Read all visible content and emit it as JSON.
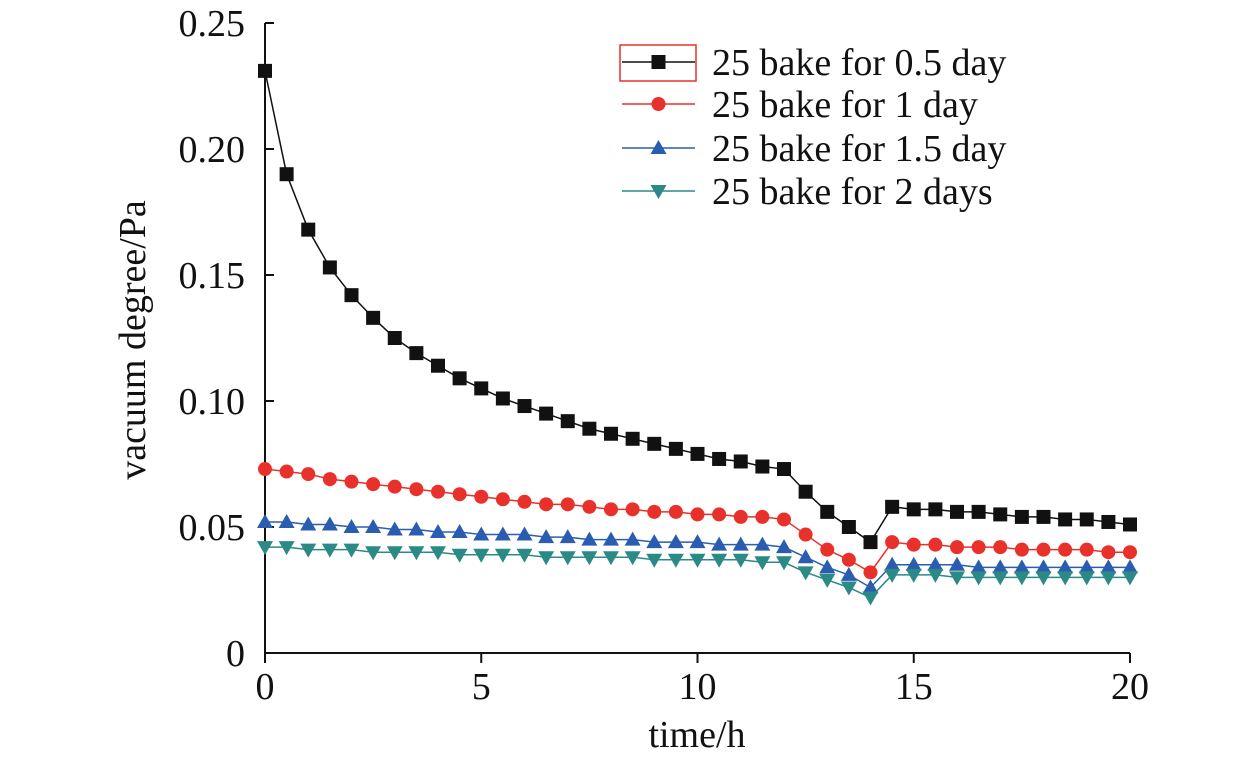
{
  "chart_data": {
    "type": "line",
    "title": "",
    "xlabel": "time/h",
    "ylabel": "vacuum degree/Pa",
    "xlim": [
      0,
      20
    ],
    "ylim": [
      0,
      0.25
    ],
    "xticks": [
      0,
      5,
      10,
      15,
      20
    ],
    "xtick_labels": [
      "0",
      "5",
      "10",
      "15",
      "20"
    ],
    "yticks": [
      0,
      0.05,
      0.1,
      0.15,
      0.2,
      0.25
    ],
    "ytick_labels": [
      "0",
      "0.05",
      "0.10",
      "0.15",
      "0.20",
      "0.25"
    ],
    "grid": false,
    "legend_position": "top-right",
    "x": [
      0,
      0.5,
      1,
      1.5,
      2,
      2.5,
      3,
      3.5,
      4,
      4.5,
      5,
      5.5,
      6,
      6.5,
      7,
      7.5,
      8,
      8.5,
      9,
      9.5,
      10,
      10.5,
      11,
      11.5,
      12,
      12.5,
      13,
      13.5,
      14,
      14.5,
      15,
      15.5,
      16,
      16.5,
      17,
      17.5,
      18,
      18.5,
      19,
      19.5,
      20
    ],
    "series": [
      {
        "name": "25 bake for 0.5 day",
        "color": "#111111",
        "marker": "square",
        "values": [
          0.231,
          0.19,
          0.168,
          0.153,
          0.142,
          0.133,
          0.125,
          0.119,
          0.114,
          0.109,
          0.105,
          0.101,
          0.098,
          0.095,
          0.092,
          0.089,
          0.087,
          0.085,
          0.083,
          0.081,
          0.079,
          0.077,
          0.076,
          0.074,
          0.073,
          0.064,
          0.056,
          0.05,
          0.044,
          0.058,
          0.057,
          0.057,
          0.056,
          0.056,
          0.055,
          0.054,
          0.054,
          0.053,
          0.053,
          0.052,
          0.051
        ]
      },
      {
        "name": "25 bake for 1 day",
        "color": "#e8312a",
        "marker": "circle",
        "values": [
          0.073,
          0.072,
          0.071,
          0.069,
          0.068,
          0.067,
          0.066,
          0.065,
          0.064,
          0.063,
          0.062,
          0.061,
          0.06,
          0.059,
          0.059,
          0.058,
          0.057,
          0.057,
          0.056,
          0.056,
          0.055,
          0.055,
          0.054,
          0.054,
          0.053,
          0.047,
          0.041,
          0.037,
          0.032,
          0.044,
          0.043,
          0.043,
          0.042,
          0.042,
          0.042,
          0.041,
          0.041,
          0.041,
          0.041,
          0.04,
          0.04
        ]
      },
      {
        "name": "25 bake for 1.5 day",
        "color": "#2a5db0",
        "marker": "triangle-up",
        "values": [
          0.052,
          0.052,
          0.051,
          0.051,
          0.05,
          0.05,
          0.049,
          0.049,
          0.048,
          0.048,
          0.047,
          0.047,
          0.047,
          0.046,
          0.046,
          0.045,
          0.045,
          0.045,
          0.044,
          0.044,
          0.044,
          0.043,
          0.043,
          0.043,
          0.042,
          0.038,
          0.034,
          0.031,
          0.026,
          0.035,
          0.035,
          0.035,
          0.035,
          0.034,
          0.034,
          0.034,
          0.034,
          0.034,
          0.034,
          0.034,
          0.034
        ]
      },
      {
        "name": "25 bake for 2 days",
        "color": "#2b8a86",
        "marker": "triangle-down",
        "values": [
          0.042,
          0.042,
          0.041,
          0.041,
          0.041,
          0.04,
          0.04,
          0.04,
          0.04,
          0.039,
          0.039,
          0.039,
          0.039,
          0.038,
          0.038,
          0.038,
          0.038,
          0.038,
          0.037,
          0.037,
          0.037,
          0.037,
          0.037,
          0.036,
          0.036,
          0.032,
          0.029,
          0.026,
          0.022,
          0.031,
          0.031,
          0.031,
          0.03,
          0.03,
          0.03,
          0.03,
          0.03,
          0.03,
          0.03,
          0.03,
          0.03
        ]
      }
    ],
    "legend_highlight_color": "#e8312a"
  }
}
